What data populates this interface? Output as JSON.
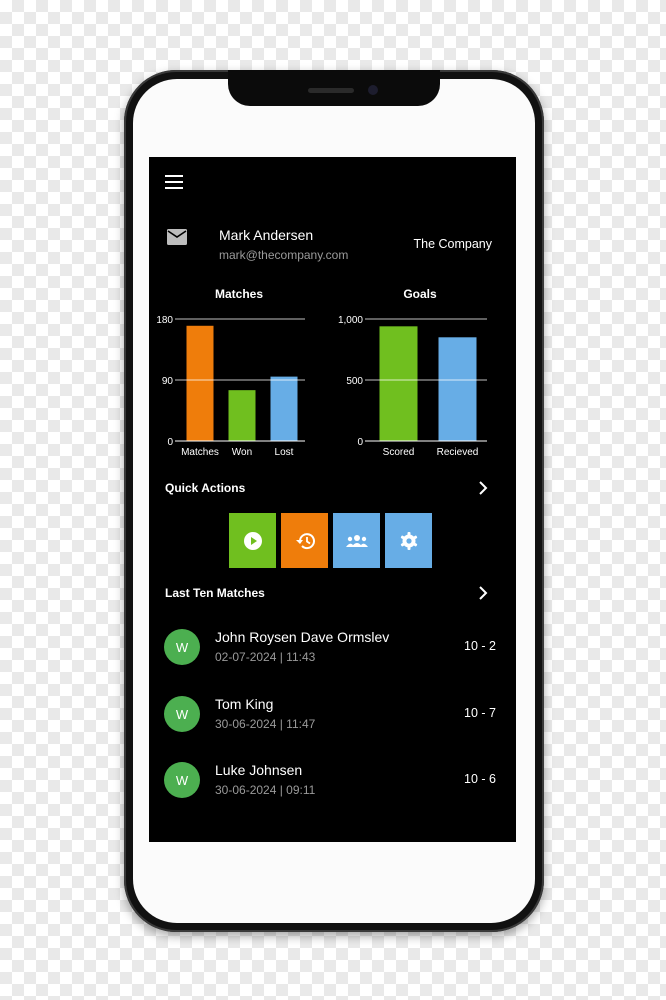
{
  "user": {
    "name": "Mark Andersen",
    "email": "mark@thecompany.com",
    "company": "The Company"
  },
  "colors": {
    "orange": "#ef7d0b",
    "green": "#70bf1f",
    "blue": "#67ade6",
    "avatar": "#4caf50"
  },
  "chart_data": [
    {
      "type": "bar",
      "title": "Matches",
      "categories": [
        "Matches",
        "Won",
        "Lost"
      ],
      "values": [
        170,
        75,
        95
      ],
      "colors": [
        "#ef7d0b",
        "#70bf1f",
        "#67ade6"
      ],
      "ylim": [
        0,
        180
      ],
      "yticks": [
        "0",
        "90",
        "180"
      ],
      "ytick_values": [
        0,
        90,
        180
      ],
      "grid": true
    },
    {
      "type": "bar",
      "title": "Goals",
      "categories": [
        "Scored",
        "Recieved"
      ],
      "values": [
        940,
        850
      ],
      "colors": [
        "#70bf1f",
        "#67ade6"
      ],
      "ylim": [
        0,
        1000
      ],
      "yticks": [
        "0",
        "500",
        "1,000"
      ],
      "ytick_values": [
        0,
        500,
        1000
      ],
      "grid": true
    }
  ],
  "quick_actions": {
    "title": "Quick Actions",
    "items": [
      {
        "icon": "play-icon",
        "color": "#70bf1f"
      },
      {
        "icon": "history-icon",
        "color": "#ef7d0b"
      },
      {
        "icon": "group-icon",
        "color": "#67ade6"
      },
      {
        "icon": "gear-icon",
        "color": "#67ade6"
      }
    ]
  },
  "last_matches": {
    "title": "Last Ten Matches",
    "items": [
      {
        "badge": "W",
        "title": "John Roysen Dave Ormslev",
        "date": "02-07-2024 | 11:43",
        "score": "10 - 2"
      },
      {
        "badge": "W",
        "title": "Tom King",
        "date": "30-06-2024 | 11:47",
        "score": "10 - 7"
      },
      {
        "badge": "W",
        "title": "Luke Johnsen",
        "date": "30-06-2024 | 09:11",
        "score": "10 - 6"
      }
    ]
  }
}
